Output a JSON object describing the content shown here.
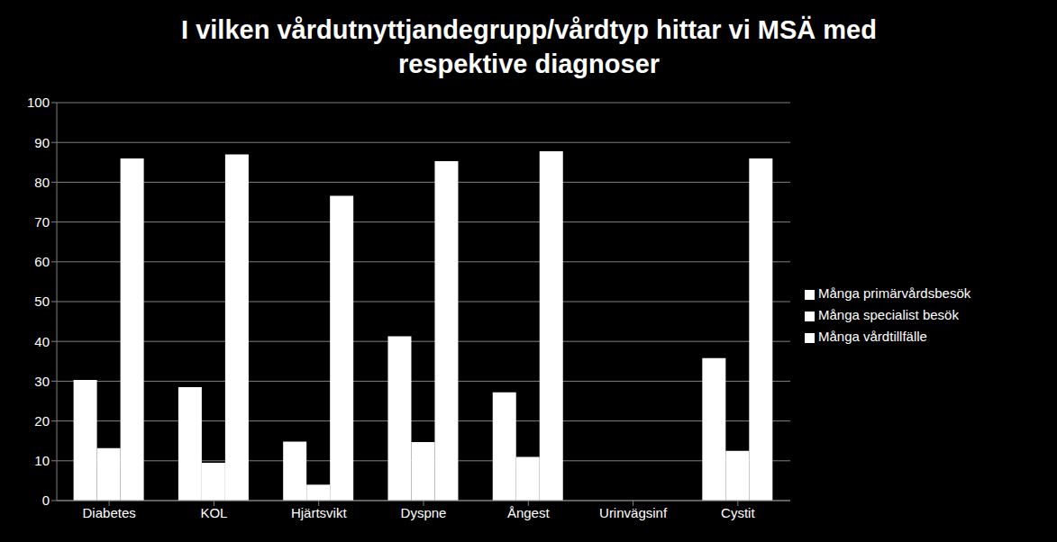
{
  "chart_data": {
    "type": "bar",
    "title": "I vilken vårdutnyttjandegrupp/vårdtyp hittar vi MSÄ med respektive diagnoser",
    "categories": [
      "Diabetes",
      "KOL",
      "Hjärtsvikt",
      "Dyspne",
      "Ångest",
      "Urinvägsinf",
      "Cystit"
    ],
    "series": [
      {
        "name": "Många primärvårdsbesök",
        "color": "#ffffff",
        "values": [
          30.3,
          28.5,
          14.8,
          41.3,
          27.2,
          null,
          35.8
        ]
      },
      {
        "name": "Många specialist besök",
        "color": "#ffffff",
        "values": [
          13.2,
          9.5,
          4,
          14.7,
          11,
          null,
          12.5
        ]
      },
      {
        "name": "Många vårdtillfälle",
        "color": "#ffffff",
        "values": [
          86,
          87,
          76.6,
          85.3,
          87.8,
          null,
          86
        ]
      }
    ],
    "ylim": [
      0,
      100
    ],
    "yticks": [
      0,
      10,
      20,
      30,
      40,
      50,
      60,
      70,
      80,
      90,
      100
    ],
    "grid": true,
    "legend": "right"
  }
}
